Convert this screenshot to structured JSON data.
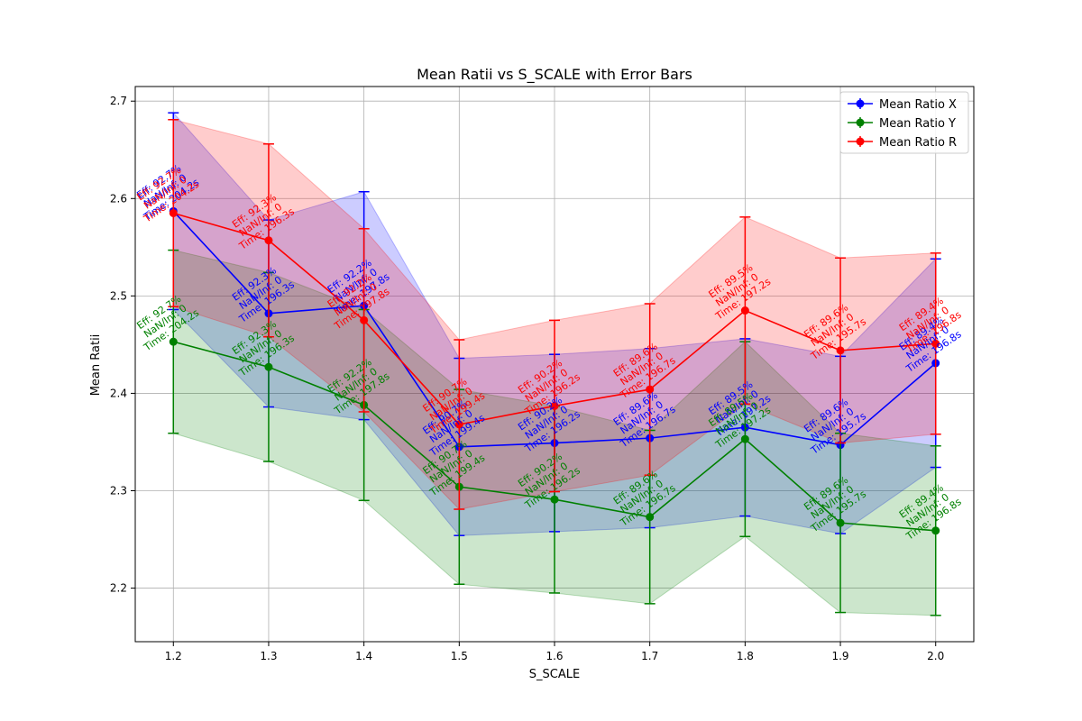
{
  "chart_data": {
    "type": "line",
    "title": "Mean Ratii vs S_SCALE with Error Bars",
    "xlabel": "S_SCALE",
    "ylabel": "Mean Ratii",
    "x": [
      1.2,
      1.3,
      1.4,
      1.5,
      1.6,
      1.7,
      1.8,
      1.9,
      2.0
    ],
    "x_tick_labels": [
      "1.2",
      "1.3",
      "1.4",
      "1.5",
      "1.6",
      "1.7",
      "1.8",
      "1.9",
      "2.0"
    ],
    "xlim": [
      1.16,
      2.04
    ],
    "ylim": [
      2.145,
      2.715
    ],
    "y_ticks": [
      2.2,
      2.3,
      2.4,
      2.5,
      2.6,
      2.7
    ],
    "y_tick_labels": [
      "2.2",
      "2.3",
      "2.4",
      "2.5",
      "2.6",
      "2.7"
    ],
    "grid": true,
    "legend_position": "top-right",
    "series": [
      {
        "name": "Mean Ratio X",
        "color": "#0000ff",
        "values": [
          2.587,
          2.482,
          2.49,
          2.345,
          2.349,
          2.354,
          2.365,
          2.347,
          2.431
        ],
        "errors": [
          0.101,
          0.096,
          0.117,
          0.091,
          0.091,
          0.092,
          0.091,
          0.091,
          0.107
        ]
      },
      {
        "name": "Mean Ratio Y",
        "color": "#008000",
        "values": [
          2.453,
          2.427,
          2.388,
          2.304,
          2.291,
          2.273,
          2.353,
          2.267,
          2.259
        ],
        "errors": [
          0.094,
          0.097,
          0.098,
          0.1,
          0.096,
          0.089,
          0.1,
          0.092,
          0.087
        ]
      },
      {
        "name": "Mean Ratio R",
        "color": "#ff0000",
        "values": [
          2.585,
          2.557,
          2.475,
          2.368,
          2.387,
          2.404,
          2.485,
          2.444,
          2.451
        ],
        "errors": [
          0.096,
          0.099,
          0.094,
          0.087,
          0.088,
          0.088,
          0.096,
          0.095,
          0.093
        ]
      }
    ],
    "annotations": [
      {
        "series": 0,
        "lines": [
          "Eff: 92.7%",
          "NaN/Inf: 0",
          "Time: 204.2s"
        ]
      },
      {
        "series": 0,
        "lines": [
          "Eff: 92.3%",
          "NaN/Inf: 0",
          "Time: 196.3s"
        ]
      },
      {
        "series": 0,
        "lines": [
          "Eff: 92.2%",
          "NaN/Inf: 0",
          "Time: 197.8s"
        ]
      },
      {
        "series": 0,
        "lines": [
          "Eff: 90.7%",
          "NaN/Inf: 0",
          "Time: 199.4s"
        ]
      },
      {
        "series": 0,
        "lines": [
          "Eff: 90.2%",
          "NaN/Inf: 0",
          "Time: 196.2s"
        ]
      },
      {
        "series": 0,
        "lines": [
          "Eff: 89.6%",
          "NaN/Inf: 0",
          "Time: 196.7s"
        ]
      },
      {
        "series": 0,
        "lines": [
          "Eff: 89.5%",
          "NaN/Inf: 0",
          "Time: 197.2s"
        ]
      },
      {
        "series": 0,
        "lines": [
          "Eff: 89.6%",
          "NaN/Inf: 0",
          "Time: 195.7s"
        ]
      },
      {
        "series": 0,
        "lines": [
          "Eff: 89.4%",
          "NaN/Inf: 0",
          "Time: 196.8s"
        ]
      },
      {
        "series": 1,
        "lines": [
          "Eff: 92.7%",
          "NaN/Inf: 0",
          "Time: 204.2s"
        ]
      },
      {
        "series": 1,
        "lines": [
          "Eff: 92.3%",
          "NaN/Inf: 0",
          "Time: 196.3s"
        ]
      },
      {
        "series": 1,
        "lines": [
          "Eff: 92.2%",
          "NaN/Inf: 0",
          "Time: 197.8s"
        ]
      },
      {
        "series": 1,
        "lines": [
          "Eff: 90.7%",
          "NaN/Inf: 0",
          "Time: 199.4s"
        ]
      },
      {
        "series": 1,
        "lines": [
          "Eff: 90.2%",
          "NaN/Inf: 0",
          "Time: 196.2s"
        ]
      },
      {
        "series": 1,
        "lines": [
          "Eff: 89.6%",
          "NaN/Inf: 0",
          "Time: 196.7s"
        ]
      },
      {
        "series": 1,
        "lines": [
          "Eff: 89.5%",
          "NaN/Inf: 0",
          "Time: 197.2s"
        ]
      },
      {
        "series": 1,
        "lines": [
          "Eff: 89.6%",
          "NaN/Inf: 0",
          "Time: 195.7s"
        ]
      },
      {
        "series": 1,
        "lines": [
          "Eff: 89.4%",
          "NaN/Inf: 0",
          "Time: 196.8s"
        ]
      },
      {
        "series": 2,
        "lines": [
          "Eff: 92.7%",
          "NaN/Inf: 0",
          "Time: 204.2s"
        ]
      },
      {
        "series": 2,
        "lines": [
          "Eff: 92.3%",
          "NaN/Inf: 0",
          "Time: 196.3s"
        ]
      },
      {
        "series": 2,
        "lines": [
          "Eff: 92.2%",
          "NaN/Inf: 0",
          "Time: 197.8s"
        ]
      },
      {
        "series": 2,
        "lines": [
          "Eff: 90.7%",
          "NaN/Inf: 0",
          "Time: 199.4s"
        ]
      },
      {
        "series": 2,
        "lines": [
          "Eff: 90.2%",
          "NaN/Inf: 0",
          "Time: 196.2s"
        ]
      },
      {
        "series": 2,
        "lines": [
          "Eff: 89.6%",
          "NaN/Inf: 0",
          "Time: 196.7s"
        ]
      },
      {
        "series": 2,
        "lines": [
          "Eff: 89.5%",
          "NaN/Inf: 0",
          "Time: 197.2s"
        ]
      },
      {
        "series": 2,
        "lines": [
          "Eff: 89.6%",
          "NaN/Inf: 0",
          "Time: 195.7s"
        ]
      },
      {
        "series": 2,
        "lines": [
          "Eff: 89.4%",
          "NaN/Inf: 0",
          "Time: 196.8s"
        ]
      }
    ]
  }
}
